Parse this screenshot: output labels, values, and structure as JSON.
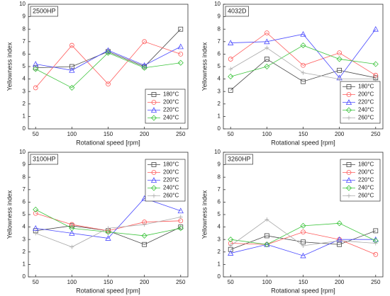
{
  "chart_data": [
    {
      "type": "line",
      "title": "2500HP",
      "x_label": "Rotational speed [rpm]",
      "y_label": "Yellowness index",
      "x": [
        50,
        100,
        150,
        200,
        250
      ],
      "xlim": [
        40,
        260
      ],
      "xticks": [
        50,
        100,
        150,
        200,
        250
      ],
      "ylim": [
        0,
        10
      ],
      "yticks": [
        0,
        1,
        2,
        3,
        4,
        5,
        6,
        7,
        8,
        9,
        10
      ],
      "legend": "lower right",
      "series": [
        {
          "name": "180°C",
          "color": "#444444",
          "marker": "square",
          "values": [
            4.9,
            5.0,
            6.2,
            5.0,
            8.0
          ]
        },
        {
          "name": "200°C",
          "color": "#ff5a5a",
          "marker": "circle",
          "values": [
            3.3,
            6.7,
            3.6,
            7.0,
            6.0
          ]
        },
        {
          "name": "220°C",
          "color": "#4a4aff",
          "marker": "triangle",
          "values": [
            5.2,
            4.7,
            6.3,
            5.1,
            6.6
          ]
        },
        {
          "name": "240°C",
          "color": "#3cc43c",
          "marker": "diamond",
          "values": [
            4.8,
            3.3,
            6.1,
            4.9,
            5.3
          ]
        }
      ]
    },
    {
      "type": "line",
      "title": "4032D",
      "x_label": "Rotational speed [rpm]",
      "y_label": "Yellowness index",
      "x": [
        50,
        100,
        150,
        200,
        250
      ],
      "xlim": [
        40,
        260
      ],
      "xticks": [
        50,
        100,
        150,
        200,
        250
      ],
      "ylim": [
        0,
        10
      ],
      "yticks": [
        0,
        1,
        2,
        3,
        4,
        5,
        6,
        7,
        8,
        9,
        10
      ],
      "legend": "lower right",
      "series": [
        {
          "name": "180°C",
          "color": "#444444",
          "marker": "square",
          "values": [
            3.1,
            5.6,
            3.8,
            4.7,
            4.1
          ]
        },
        {
          "name": "200°C",
          "color": "#ff5a5a",
          "marker": "circle",
          "values": [
            5.6,
            7.7,
            5.1,
            6.1,
            4.3
          ]
        },
        {
          "name": "220°C",
          "color": "#4a4aff",
          "marker": "triangle",
          "values": [
            6.9,
            7.0,
            7.6,
            4.1,
            8.0
          ]
        },
        {
          "name": "240°C",
          "color": "#3cc43c",
          "marker": "diamond",
          "values": [
            4.2,
            5.0,
            6.7,
            5.6,
            5.2
          ]
        },
        {
          "name": "260°C",
          "color": "#aaaaaa",
          "marker": "plus",
          "values": [
            4.8,
            6.5,
            4.5,
            4.0,
            4.0
          ]
        }
      ]
    },
    {
      "type": "line",
      "title": "3100HP",
      "x_label": "Rotational speed [rpm]",
      "y_label": "Yellowness index",
      "x": [
        50,
        100,
        150,
        200,
        250
      ],
      "xlim": [
        40,
        260
      ],
      "xticks": [
        50,
        100,
        150,
        200,
        250
      ],
      "ylim": [
        0,
        10
      ],
      "yticks": [
        0,
        1,
        2,
        3,
        4,
        5,
        6,
        7,
        8,
        9,
        10
      ],
      "legend": "upper right",
      "series": [
        {
          "name": "180°C",
          "color": "#444444",
          "marker": "square",
          "values": [
            3.7,
            4.1,
            3.7,
            2.6,
            4.0
          ]
        },
        {
          "name": "200°C",
          "color": "#ff5a5a",
          "marker": "circle",
          "values": [
            5.1,
            4.2,
            3.7,
            4.4,
            4.5
          ]
        },
        {
          "name": "220°C",
          "color": "#4a4aff",
          "marker": "triangle",
          "values": [
            3.9,
            3.5,
            3.1,
            6.3,
            5.3
          ]
        },
        {
          "name": "240°C",
          "color": "#3cc43c",
          "marker": "diamond",
          "values": [
            5.4,
            3.9,
            3.6,
            3.3,
            3.9
          ]
        },
        {
          "name": "260°C",
          "color": "#aaaaaa",
          "marker": "plus",
          "values": [
            3.5,
            2.4,
            3.9,
            4.2,
            4.8
          ]
        }
      ]
    },
    {
      "type": "line",
      "title": "3260HP",
      "x_label": "Rotational speed [rpm]",
      "y_label": "Yellowness index",
      "x": [
        50,
        100,
        150,
        200,
        250
      ],
      "xlim": [
        40,
        260
      ],
      "xticks": [
        50,
        100,
        150,
        200,
        250
      ],
      "ylim": [
        0,
        10
      ],
      "yticks": [
        0,
        1,
        2,
        3,
        4,
        5,
        6,
        7,
        8,
        9,
        10
      ],
      "legend": "upper right",
      "series": [
        {
          "name": "180°C",
          "color": "#444444",
          "marker": "square",
          "values": [
            2.2,
            3.3,
            2.8,
            2.6,
            3.7
          ]
        },
        {
          "name": "200°C",
          "color": "#ff5a5a",
          "marker": "circle",
          "values": [
            2.7,
            2.6,
            3.6,
            3.0,
            1.8
          ]
        },
        {
          "name": "220°C",
          "color": "#4a4aff",
          "marker": "triangle",
          "values": [
            1.9,
            2.6,
            1.7,
            3.0,
            3.0
          ]
        },
        {
          "name": "240°C",
          "color": "#3cc43c",
          "marker": "diamond",
          "values": [
            3.0,
            2.6,
            4.1,
            4.3,
            2.9
          ]
        },
        {
          "name": "260°C",
          "color": "#aaaaaa",
          "marker": "plus",
          "values": [
            2.5,
            4.6,
            2.5,
            2.9,
            2.7
          ]
        }
      ]
    }
  ]
}
